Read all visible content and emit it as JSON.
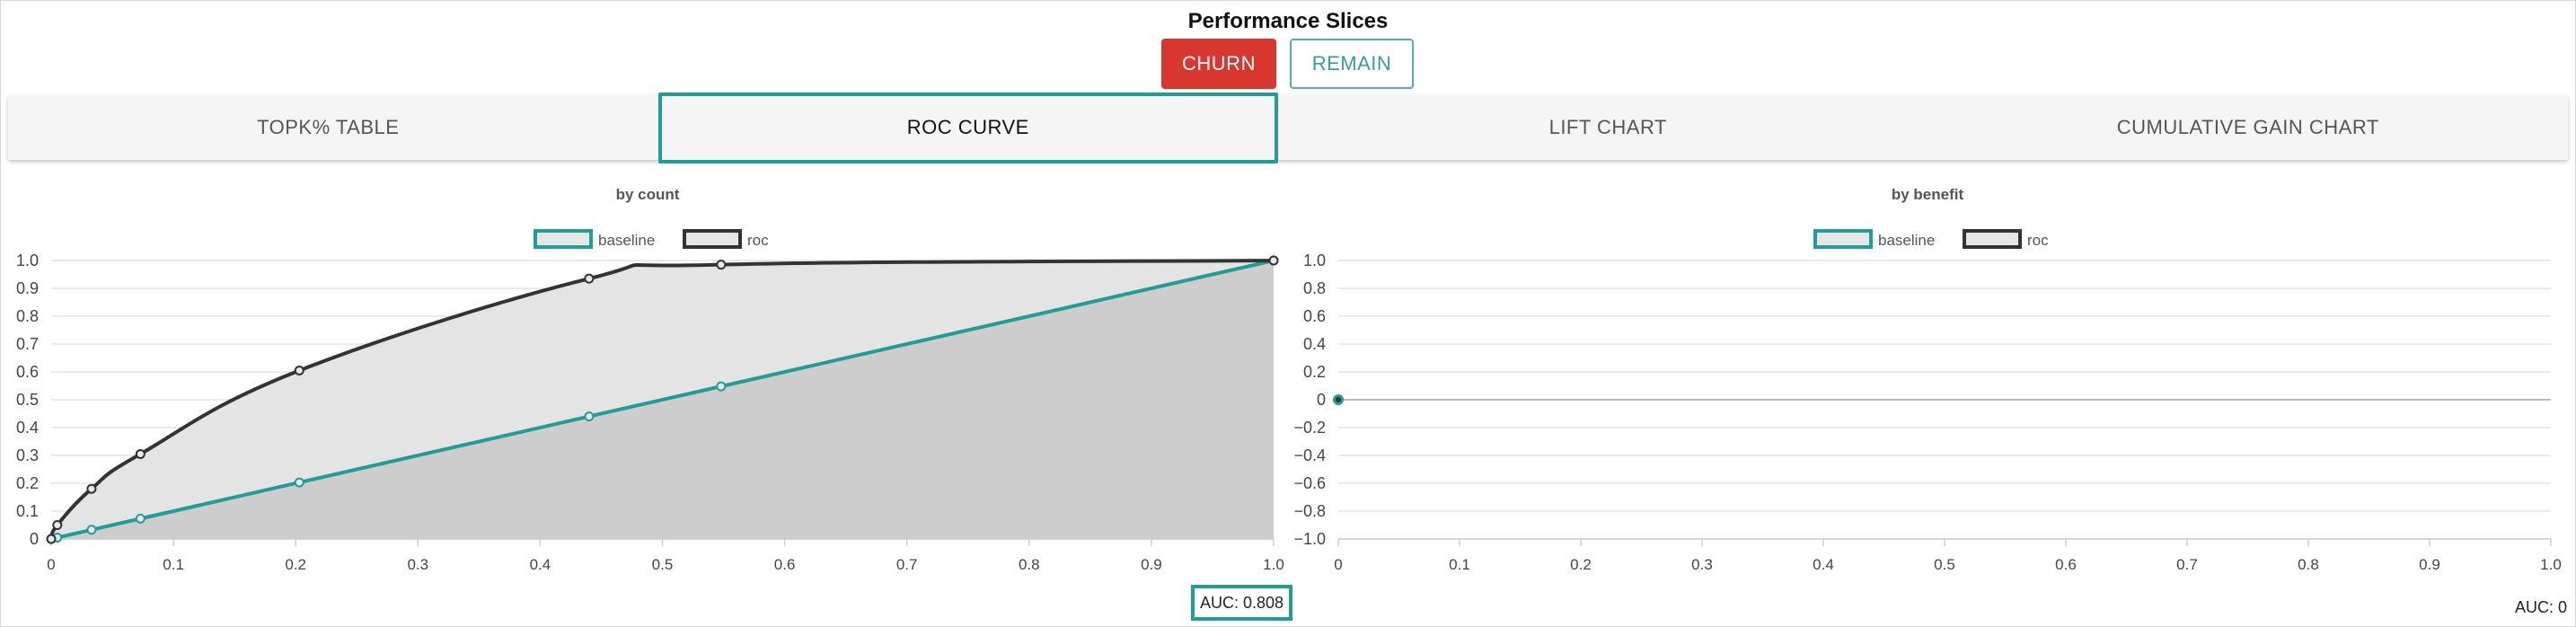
{
  "page_title": "Performance Slices",
  "buttons": {
    "churn": "CHURN",
    "remain": "REMAIN"
  },
  "tabs": [
    "TOPK% TABLE",
    "ROC CURVE",
    "LIFT CHART",
    "CUMULATIVE GAIN CHART"
  ],
  "active_tab": "ROC CURVE",
  "colors": {
    "baseline": "#1f9e98",
    "roc": "#333333",
    "churn": "#d9362f",
    "highlight": "#1f9e98"
  },
  "auc": {
    "left": "AUC: 0.808",
    "right": "AUC: 0"
  },
  "chart_data": [
    {
      "type": "line",
      "title": "by count",
      "legend": [
        "baseline",
        "roc"
      ],
      "legend_position": "top-center",
      "xlim": [
        0,
        1
      ],
      "ylim": [
        0,
        1
      ],
      "x_ticks": [
        "0",
        "0.1",
        "0.2",
        "0.3",
        "0.4",
        "0.5",
        "0.6",
        "0.7",
        "0.8",
        "0.9",
        "1.0"
      ],
      "y_ticks": [
        "0",
        "0.1",
        "0.2",
        "0.3",
        "0.4",
        "0.5",
        "0.6",
        "0.7",
        "0.8",
        "0.9",
        "1.0"
      ],
      "grid": true,
      "series": [
        {
          "name": "baseline",
          "x": [
            0,
            0.005,
            0.033,
            0.073,
            0.203,
            0.44,
            0.548,
            1.0
          ],
          "y": [
            0,
            0.005,
            0.033,
            0.073,
            0.203,
            0.44,
            0.548,
            1.0
          ]
        },
        {
          "name": "roc",
          "x": [
            0,
            0.005,
            0.033,
            0.073,
            0.203,
            0.44,
            0.548,
            1.0
          ],
          "y": [
            0,
            0.05,
            0.18,
            0.305,
            0.605,
            0.935,
            0.985,
            1.0
          ]
        }
      ]
    },
    {
      "type": "line",
      "title": "by benefit",
      "legend": [
        "baseline",
        "roc"
      ],
      "legend_position": "top-center",
      "xlim": [
        0,
        1
      ],
      "ylim": [
        -1,
        1
      ],
      "x_ticks": [
        "0",
        "0.1",
        "0.2",
        "0.3",
        "0.4",
        "0.5",
        "0.6",
        "0.7",
        "0.8",
        "0.9",
        "1.0"
      ],
      "y_ticks": [
        "−1.0",
        "−0.8",
        "−0.6",
        "−0.4",
        "−0.2",
        "0",
        "0.2",
        "0.4",
        "0.6",
        "0.8",
        "1.0"
      ],
      "grid": true,
      "series": [
        {
          "name": "baseline",
          "x": [
            0
          ],
          "y": [
            0
          ]
        },
        {
          "name": "roc",
          "x": [
            0
          ],
          "y": [
            0
          ]
        }
      ]
    }
  ]
}
